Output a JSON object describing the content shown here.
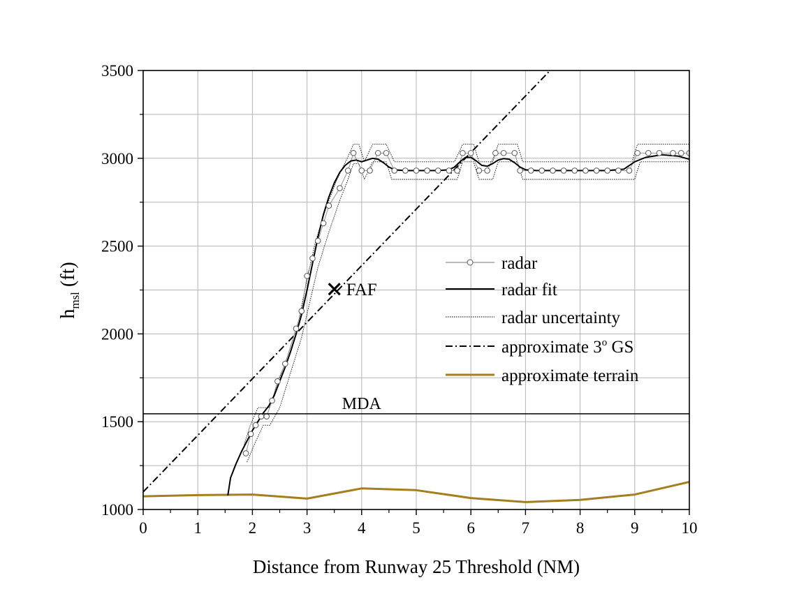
{
  "chart_data": {
    "type": "line",
    "title": "",
    "xlabel": "Distance from Runway 25 Threshold (NM)",
    "ylabel": {
      "main": "h",
      "sub": "msl",
      "units": "(ft)"
    },
    "xlim": [
      0,
      10
    ],
    "ylim": [
      1000,
      3500
    ],
    "xticks": [
      "0",
      "1",
      "2",
      "3",
      "4",
      "5",
      "6",
      "7",
      "8",
      "9",
      "10"
    ],
    "yticks": [
      "1000",
      "1500",
      "2000",
      "2500",
      "3000",
      "3500"
    ],
    "grid": true,
    "legend_position": "center-right",
    "colors": {
      "terrain": "#a57f1e",
      "line": "#000000",
      "grid": "#b4b4b4"
    },
    "series": [
      {
        "name": "radar",
        "style": "circle-markers",
        "points": [
          [
            1.88,
            1320
          ],
          [
            1.97,
            1430
          ],
          [
            2.06,
            1480
          ],
          [
            2.16,
            1530
          ],
          [
            2.26,
            1530
          ],
          [
            2.36,
            1620
          ],
          [
            2.46,
            1730
          ],
          [
            2.6,
            1830
          ],
          [
            2.8,
            2030
          ],
          [
            2.9,
            2130
          ],
          [
            3.0,
            2330
          ],
          [
            3.1,
            2430
          ],
          [
            3.2,
            2530
          ],
          [
            3.3,
            2630
          ],
          [
            3.4,
            2730
          ],
          [
            3.6,
            2830
          ],
          [
            3.75,
            2930
          ],
          [
            3.85,
            3030
          ],
          [
            4.0,
            2930
          ],
          [
            4.15,
            2930
          ],
          [
            4.3,
            3030
          ],
          [
            4.45,
            3030
          ],
          [
            4.6,
            2930
          ],
          [
            4.8,
            2930
          ],
          [
            5.0,
            2930
          ],
          [
            5.2,
            2930
          ],
          [
            5.4,
            2930
          ],
          [
            5.6,
            2930
          ],
          [
            5.75,
            2930
          ],
          [
            5.85,
            3030
          ],
          [
            6.0,
            3030
          ],
          [
            6.15,
            2930
          ],
          [
            6.3,
            2930
          ],
          [
            6.45,
            3030
          ],
          [
            6.6,
            3030
          ],
          [
            6.8,
            3030
          ],
          [
            6.9,
            2930
          ],
          [
            7.1,
            2930
          ],
          [
            7.3,
            2930
          ],
          [
            7.5,
            2930
          ],
          [
            7.7,
            2930
          ],
          [
            7.9,
            2930
          ],
          [
            8.1,
            2930
          ],
          [
            8.3,
            2930
          ],
          [
            8.5,
            2930
          ],
          [
            8.7,
            2930
          ],
          [
            8.9,
            2930
          ],
          [
            9.05,
            3030
          ],
          [
            9.25,
            3030
          ],
          [
            9.45,
            3030
          ],
          [
            9.7,
            3030
          ],
          [
            9.85,
            3030
          ],
          [
            10.0,
            3030
          ]
        ]
      },
      {
        "name": "radar fit",
        "style": "solid",
        "points": [
          [
            1.55,
            1080
          ],
          [
            1.6,
            1180
          ],
          [
            1.7,
            1260
          ],
          [
            1.8,
            1330
          ],
          [
            1.9,
            1390
          ],
          [
            2.0,
            1450
          ],
          [
            2.1,
            1500
          ],
          [
            2.2,
            1550
          ],
          [
            2.3,
            1590
          ],
          [
            2.4,
            1650
          ],
          [
            2.5,
            1730
          ],
          [
            2.6,
            1810
          ],
          [
            2.7,
            1900
          ],
          [
            2.8,
            2000
          ],
          [
            2.9,
            2110
          ],
          [
            3.0,
            2250
          ],
          [
            3.1,
            2400
          ],
          [
            3.2,
            2550
          ],
          [
            3.3,
            2680
          ],
          [
            3.4,
            2780
          ],
          [
            3.5,
            2860
          ],
          [
            3.6,
            2920
          ],
          [
            3.7,
            2960
          ],
          [
            3.8,
            2985
          ],
          [
            3.9,
            2990
          ],
          [
            4.0,
            2980
          ],
          [
            4.1,
            2990
          ],
          [
            4.2,
            3000
          ],
          [
            4.3,
            2995
          ],
          [
            4.4,
            2975
          ],
          [
            4.5,
            2950
          ],
          [
            4.6,
            2935
          ],
          [
            4.8,
            2930
          ],
          [
            5.0,
            2930
          ],
          [
            5.2,
            2930
          ],
          [
            5.4,
            2930
          ],
          [
            5.6,
            2935
          ],
          [
            5.7,
            2950
          ],
          [
            5.8,
            2980
          ],
          [
            5.9,
            3005
          ],
          [
            6.0,
            3005
          ],
          [
            6.1,
            2985
          ],
          [
            6.2,
            2960
          ],
          [
            6.3,
            2955
          ],
          [
            6.4,
            2970
          ],
          [
            6.5,
            2990
          ],
          [
            6.6,
            2998
          ],
          [
            6.7,
            2995
          ],
          [
            6.8,
            2975
          ],
          [
            6.9,
            2950
          ],
          [
            7.0,
            2935
          ],
          [
            7.2,
            2930
          ],
          [
            7.5,
            2930
          ],
          [
            8.0,
            2930
          ],
          [
            8.5,
            2930
          ],
          [
            8.8,
            2938
          ],
          [
            9.0,
            2980
          ],
          [
            9.2,
            3005
          ],
          [
            9.5,
            3020
          ],
          [
            9.8,
            3012
          ],
          [
            10.0,
            2995
          ]
        ]
      },
      {
        "name": "radar uncertainty",
        "style": "dotted",
        "upper": [
          [
            1.85,
            1370
          ],
          [
            1.95,
            1470
          ],
          [
            2.1,
            1580
          ],
          [
            2.3,
            1580
          ],
          [
            2.45,
            1700
          ],
          [
            2.65,
            1880
          ],
          [
            2.85,
            2080
          ],
          [
            3.0,
            2310
          ],
          [
            3.15,
            2520
          ],
          [
            3.35,
            2720
          ],
          [
            3.55,
            2880
          ],
          [
            3.75,
            3010
          ],
          [
            3.85,
            3080
          ],
          [
            3.95,
            3080
          ],
          [
            4.05,
            2980
          ],
          [
            4.2,
            3080
          ],
          [
            4.45,
            3080
          ],
          [
            4.6,
            2980
          ],
          [
            5.7,
            2980
          ],
          [
            5.85,
            3080
          ],
          [
            6.05,
            3080
          ],
          [
            6.15,
            2980
          ],
          [
            6.4,
            2980
          ],
          [
            6.5,
            3080
          ],
          [
            6.85,
            3080
          ],
          [
            6.95,
            2980
          ],
          [
            8.95,
            2980
          ],
          [
            9.05,
            3080
          ],
          [
            10.0,
            3080
          ]
        ],
        "lower": [
          [
            1.9,
            1270
          ],
          [
            2.05,
            1380
          ],
          [
            2.2,
            1480
          ],
          [
            2.32,
            1480
          ],
          [
            2.5,
            1580
          ],
          [
            2.7,
            1780
          ],
          [
            2.9,
            1980
          ],
          [
            3.05,
            2180
          ],
          [
            3.2,
            2380
          ],
          [
            3.4,
            2580
          ],
          [
            3.6,
            2760
          ],
          [
            3.75,
            2880
          ],
          [
            3.85,
            2970
          ],
          [
            3.95,
            2970
          ],
          [
            4.05,
            2880
          ],
          [
            4.2,
            2980
          ],
          [
            4.45,
            2980
          ],
          [
            4.55,
            2880
          ],
          [
            5.75,
            2880
          ],
          [
            5.85,
            2980
          ],
          [
            6.05,
            2980
          ],
          [
            6.15,
            2880
          ],
          [
            6.4,
            2880
          ],
          [
            6.5,
            2980
          ],
          [
            6.85,
            2980
          ],
          [
            6.95,
            2880
          ],
          [
            9.0,
            2880
          ],
          [
            9.1,
            2980
          ],
          [
            10.0,
            2980
          ]
        ]
      },
      {
        "name": "approximate 3° GS",
        "style": "dashdot",
        "points": [
          [
            0.0,
            1100
          ],
          [
            7.45,
            3500
          ]
        ]
      },
      {
        "name": "approximate terrain",
        "style": "solid-thick",
        "points": [
          [
            0.0,
            1075
          ],
          [
            1.0,
            1082
          ],
          [
            2.0,
            1085
          ],
          [
            3.0,
            1062
          ],
          [
            4.0,
            1120
          ],
          [
            5.0,
            1110
          ],
          [
            6.0,
            1065
          ],
          [
            7.0,
            1042
          ],
          [
            8.0,
            1055
          ],
          [
            9.0,
            1085
          ],
          [
            10.0,
            1157
          ]
        ]
      }
    ],
    "reference_lines": [
      {
        "label": "MDA",
        "y": 1545
      }
    ],
    "annotations": [
      {
        "label": "FAF",
        "marker": "cross",
        "x": 3.5,
        "y": 2255
      }
    ],
    "legend": [
      {
        "label": "radar",
        "style": "circle-markers"
      },
      {
        "label": "radar fit",
        "style": "solid"
      },
      {
        "label": "radar uncertainty",
        "style": "dotted"
      },
      {
        "label_main": "approximate 3",
        "label_sup": "o",
        "label_rest": " GS",
        "style": "dashdot"
      },
      {
        "label": "approximate terrain",
        "style": "solid-thick"
      }
    ]
  }
}
